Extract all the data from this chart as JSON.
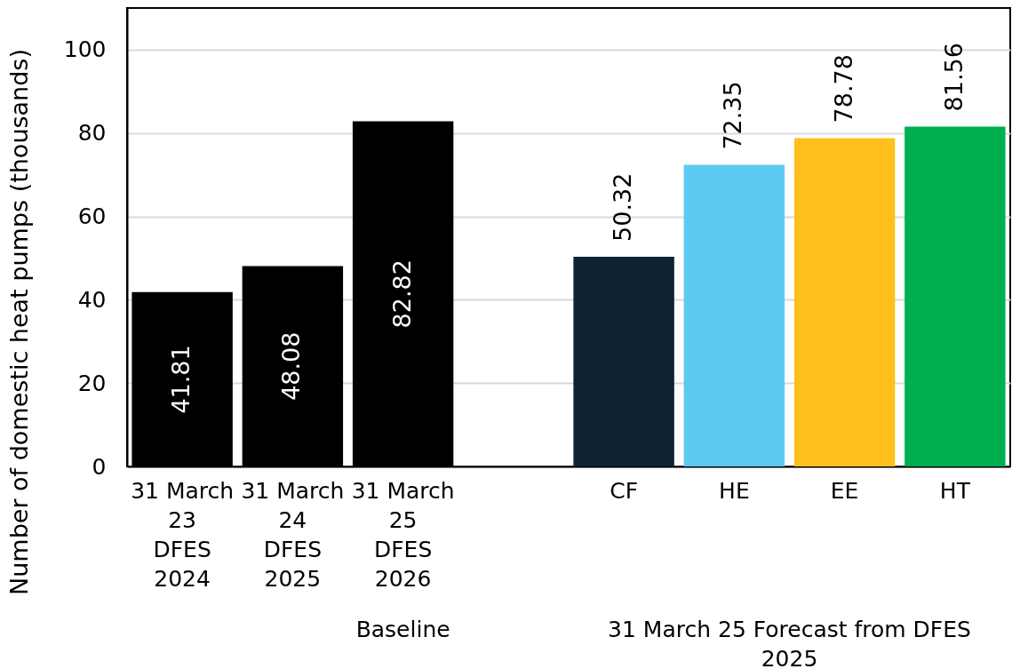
{
  "chart_data": {
    "type": "bar",
    "ylabel": "Number of domestic heat pumps (thousands)",
    "categories": [
      "31 March\n23\nDFES\n2024",
      "31 March\n24\nDFES\n2025",
      "31 March\n25\nDFES\n2026",
      null,
      "CF",
      "HE",
      "EE",
      "HT"
    ],
    "values": [
      41.81,
      48.08,
      82.82,
      null,
      50.32,
      72.35,
      78.78,
      81.56
    ],
    "colors": [
      "#000000",
      "#000000",
      "#000000",
      null,
      "#0d2232",
      "#5cc9f2",
      "#ffc01e",
      "#00b050"
    ],
    "ylim": [
      0,
      110
    ],
    "yticks": [
      0,
      20,
      40,
      60,
      80,
      100
    ],
    "grid": "y",
    "data_labels": true,
    "annotations": [
      "Baseline",
      "31 March 25 Forecast from DFES\n2025"
    ]
  }
}
